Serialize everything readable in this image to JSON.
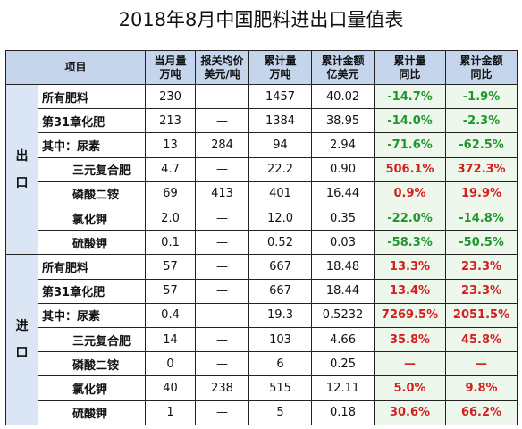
{
  "title": "2018年8月中国肥料进出口量值表",
  "header": {
    "item": "项目",
    "month_qty": [
      "当月量",
      "万吨"
    ],
    "avg_price": [
      "报关均价",
      "美元/吨"
    ],
    "cum_qty": [
      "累计量",
      "万吨"
    ],
    "cum_value": [
      "累计金额",
      "亿美元"
    ],
    "cum_qty_yoy": [
      "累计量",
      "同比"
    ],
    "cum_value_yoy": [
      "累计金额",
      "同比"
    ]
  },
  "export": {
    "label": [
      "出",
      "口"
    ],
    "rows": [
      {
        "name": "所有肥料",
        "month": "230",
        "price": "—",
        "cum": "1457",
        "value": "40.02",
        "qty_yoy": "-14.7%",
        "val_yoy": "-1.9%",
        "qty_sign": "neg",
        "val_sign": "neg"
      },
      {
        "name": "第31章化肥",
        "month": "213",
        "price": "—",
        "cum": "1384",
        "value": "38.95",
        "qty_yoy": "-14.0%",
        "val_yoy": "-2.3%",
        "qty_sign": "neg",
        "val_sign": "neg"
      },
      {
        "name": "其中：尿素",
        "month": "13",
        "price": "284",
        "cum": "94",
        "value": "2.94",
        "qty_yoy": "-71.6%",
        "val_yoy": "-62.5%",
        "qty_sign": "neg",
        "val_sign": "neg"
      },
      {
        "name": "三元复合肥",
        "month": "4.7",
        "price": "—",
        "cum": "22.2",
        "value": "0.90",
        "qty_yoy": "506.1%",
        "val_yoy": "372.3%",
        "qty_sign": "pos",
        "val_sign": "pos"
      },
      {
        "name": "磷酸二铵",
        "month": "69",
        "price": "413",
        "cum": "401",
        "value": "16.44",
        "qty_yoy": "0.9%",
        "val_yoy": "19.9%",
        "qty_sign": "pos",
        "val_sign": "pos"
      },
      {
        "name": "氯化钾",
        "month": "2.0",
        "price": "—",
        "cum": "12.0",
        "value": "0.35",
        "qty_yoy": "-22.0%",
        "val_yoy": "-14.8%",
        "qty_sign": "neg",
        "val_sign": "neg"
      },
      {
        "name": "硫酸钾",
        "month": "0.1",
        "price": "—",
        "cum": "0.52",
        "value": "0.03",
        "qty_yoy": "-58.3%",
        "val_yoy": "-50.5%",
        "qty_sign": "neg",
        "val_sign": "neg"
      }
    ]
  },
  "import": {
    "label": [
      "进",
      "口"
    ],
    "rows": [
      {
        "name": "所有肥料",
        "month": "57",
        "price": "—",
        "cum": "667",
        "value": "18.48",
        "qty_yoy": "13.3%",
        "val_yoy": "23.3%",
        "qty_sign": "pos",
        "val_sign": "pos"
      },
      {
        "name": "第31章化肥",
        "month": "57",
        "price": "—",
        "cum": "667",
        "value": "18.44",
        "qty_yoy": "13.4%",
        "val_yoy": "23.3%",
        "qty_sign": "pos",
        "val_sign": "pos"
      },
      {
        "name": "其中：尿素",
        "month": "0.4",
        "price": "—",
        "cum": "19.3",
        "value": "0.5232",
        "qty_yoy": "7269.5%",
        "val_yoy": "2051.5%",
        "qty_sign": "pos",
        "val_sign": "pos"
      },
      {
        "name": "三元复合肥",
        "month": "14",
        "price": "—",
        "cum": "103",
        "value": "4.66",
        "qty_yoy": "35.8%",
        "val_yoy": "45.8%",
        "qty_sign": "pos",
        "val_sign": "pos"
      },
      {
        "name": "磷酸二铵",
        "month": "0",
        "price": "—",
        "cum": "6",
        "value": "0.25",
        "qty_yoy": "—",
        "val_yoy": "—",
        "qty_sign": "pos",
        "val_sign": "pos"
      },
      {
        "name": "氯化钾",
        "month": "40",
        "price": "238",
        "cum": "515",
        "value": "12.11",
        "qty_yoy": "5.0%",
        "val_yoy": "9.8%",
        "qty_sign": "pos",
        "val_sign": "pos"
      },
      {
        "name": "硫酸钾",
        "month": "1",
        "price": "—",
        "cum": "5",
        "value": "0.18",
        "qty_yoy": "30.6%",
        "val_yoy": "66.2%",
        "qty_sign": "pos",
        "val_sign": "pos"
      }
    ]
  }
}
